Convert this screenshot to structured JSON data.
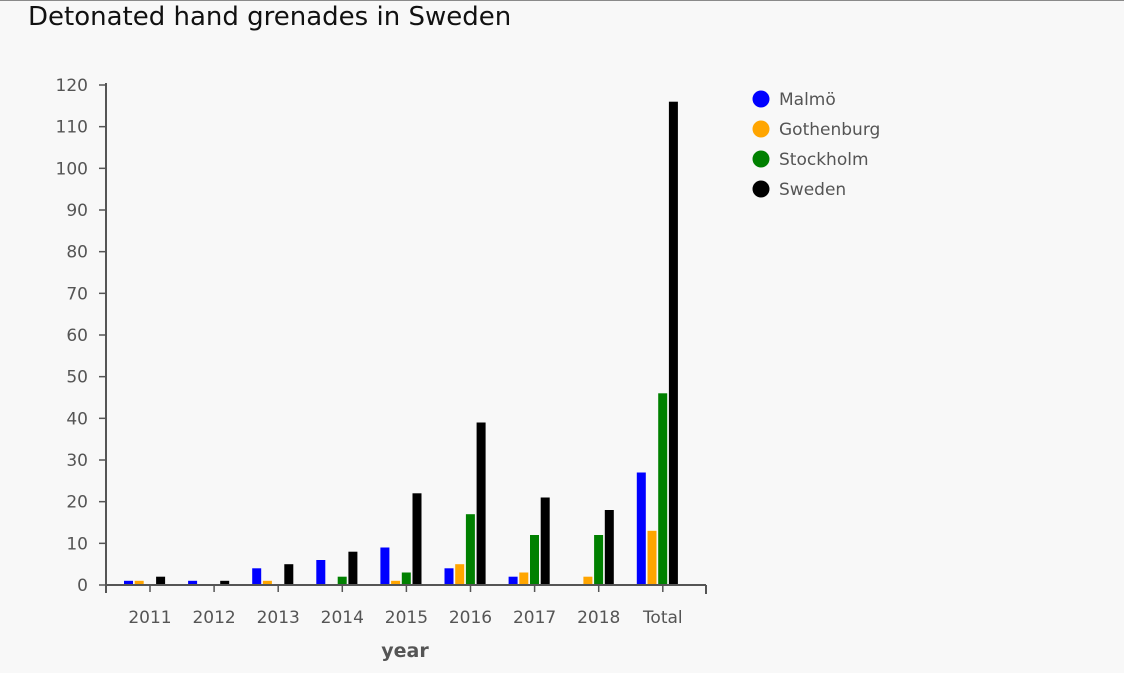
{
  "chart_data": {
    "type": "bar",
    "title": "Detonated hand grenades in Sweden",
    "xlabel": "year",
    "ylabel": "",
    "ylim": [
      0,
      120
    ],
    "yticks": [
      0,
      10,
      20,
      30,
      40,
      50,
      60,
      70,
      80,
      90,
      100,
      110,
      120
    ],
    "categories": [
      "2011",
      "2012",
      "2013",
      "2014",
      "2015",
      "2016",
      "2017",
      "2018",
      "Total"
    ],
    "series": [
      {
        "name": "Malmö",
        "color": "#0000ff",
        "values": [
          1,
          1,
          4,
          6,
          9,
          4,
          2,
          0,
          27
        ]
      },
      {
        "name": "Gothenburg",
        "color": "#ffa500",
        "values": [
          1,
          0,
          1,
          0,
          1,
          5,
          3,
          2,
          13
        ]
      },
      {
        "name": "Stockholm",
        "color": "#008000",
        "values": [
          0,
          0,
          0,
          2,
          3,
          17,
          12,
          12,
          46
        ]
      },
      {
        "name": "Sweden",
        "color": "#000000",
        "values": [
          2,
          1,
          5,
          8,
          22,
          39,
          21,
          18,
          116
        ]
      }
    ],
    "grid": false,
    "legend_position": "top-right"
  }
}
